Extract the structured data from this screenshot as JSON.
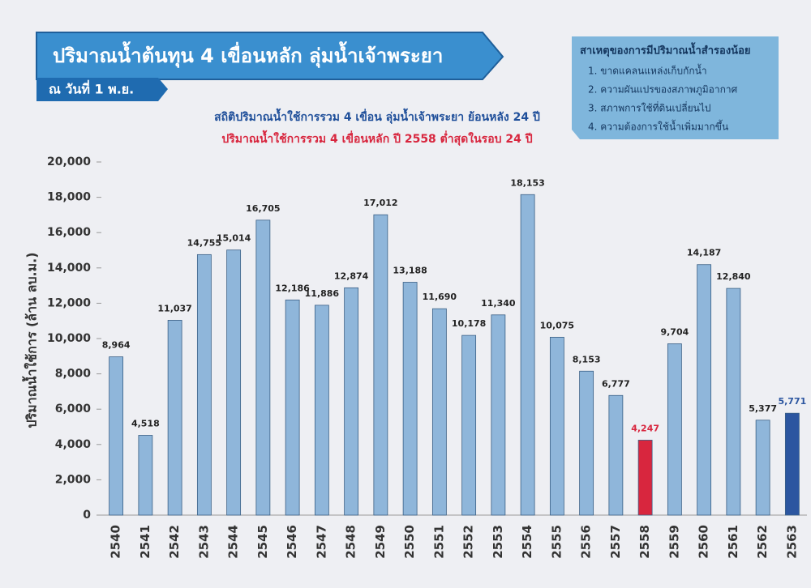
{
  "chart_data": {
    "type": "bar",
    "title": "ปริมาณน้ำต้นทุน 4 เขื่อนหลัก ลุ่มน้ำเจ้าพระยา",
    "date_label": "ณ วันที่ 1 พ.ย.",
    "subtitle": "สถิติปริมาณน้ำใช้การรวม 4 เขื่อน ลุ่มน้ำเจ้าพระยา ย้อนหลัง 24 ปี",
    "annotation": "ปริมาณน้ำใช้การรวม 4 เขื่อนหลัก ปี 2558 ต่ำสุดในรอบ 24 ปี",
    "y_label": "ปริมาณน้ำใช้การ (ล้าน ลบ.ม.)",
    "info_box": {
      "title": "สาเหตุของการมีปริมาณน้ำสำรองน้อย",
      "items": [
        "1. ขาดแคลนแหล่งเก็บกักน้ำ",
        "2. ความผันแปรของสภาพภูมิอากาศ",
        "3. สภาพการใช้ที่ดินเปลี่ยนไป",
        "4. ความต้องการใช้น้ำเพิ่มมากขึ้น"
      ]
    },
    "categories": [
      "2540",
      "2541",
      "2542",
      "2543",
      "2544",
      "2545",
      "2546",
      "2547",
      "2548",
      "2549",
      "2550",
      "2551",
      "2552",
      "2553",
      "2554",
      "2555",
      "2556",
      "2557",
      "2558",
      "2559",
      "2560",
      "2561",
      "2562",
      "2563"
    ],
    "values": [
      8964,
      4518,
      11037,
      14755,
      15014,
      16705,
      12186,
      11886,
      12874,
      17012,
      13188,
      11690,
      10178,
      11340,
      18153,
      10075,
      8153,
      6777,
      4247,
      9704,
      14187,
      12840,
      5377,
      5771
    ],
    "value_labels": [
      "8,964",
      "4,518",
      "11,037",
      "14,755",
      "15,014",
      "16,705",
      "12,186",
      "11,886",
      "12,874",
      "17,012",
      "13,188",
      "11,690",
      "10,178",
      "11,340",
      "18,153",
      "10,075",
      "8,153",
      "6,777",
      "4,247",
      "9,704",
      "14,187",
      "12,840",
      "5,377",
      "5,771"
    ],
    "color": "#8fb6da",
    "colors": [
      "#8fb6da",
      "#8fb6da",
      "#8fb6da",
      "#8fb6da",
      "#8fb6da",
      "#8fb6da",
      "#8fb6da",
      "#8fb6da",
      "#8fb6da",
      "#8fb6da",
      "#8fb6da",
      "#8fb6da",
      "#8fb6da",
      "#8fb6da",
      "#8fb6da",
      "#8fb6da",
      "#8fb6da",
      "#8fb6da",
      "#d8263e",
      "#8fb6da",
      "#8fb6da",
      "#8fb6da",
      "#8fb6da",
      "#2c56a0"
    ],
    "ylim": [
      0,
      20000
    ],
    "yticks": [
      0,
      {
        "value": 2000,
        "label": "2,000"
      },
      {
        "value": 4000,
        "label": "4,000"
      },
      {
        "value": 6000,
        "label": "6,000"
      },
      {
        "value": 8000,
        "label": "8,000"
      },
      {
        "value": 10000,
        "label": "10,000"
      },
      {
        "value": 12000,
        "label": "12,000"
      },
      {
        "value": 14000,
        "label": "14,000"
      },
      {
        "value": 16000,
        "label": "16,000"
      },
      {
        "value": 18000,
        "label": "18,000"
      },
      {
        "value": 20000,
        "label": "20,000"
      }
    ],
    "grid": false
  }
}
